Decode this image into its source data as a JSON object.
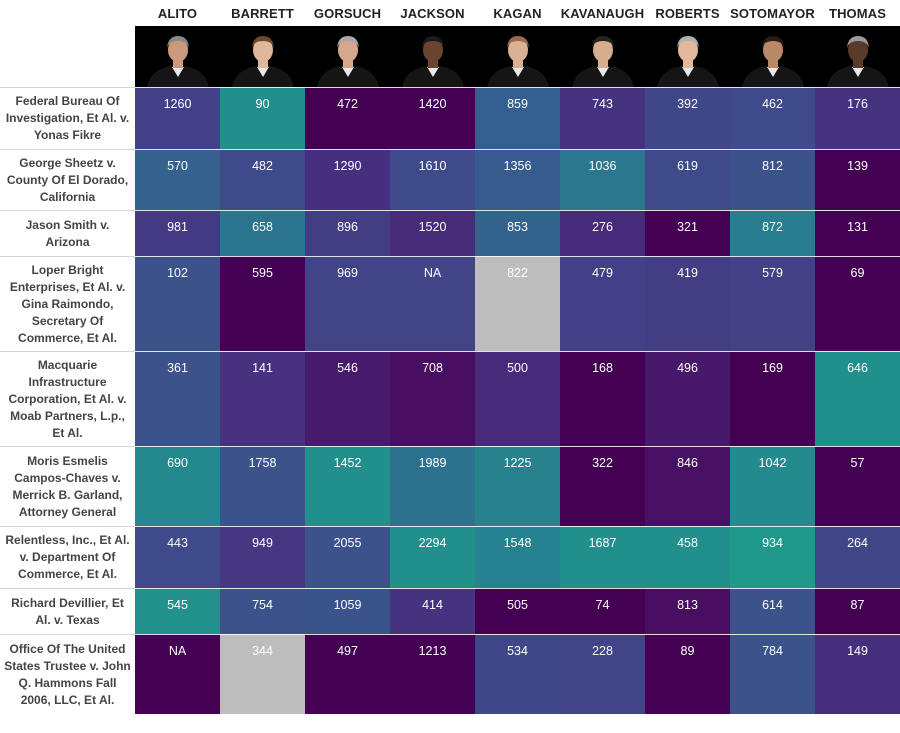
{
  "chart_data": {
    "type": "heatmap",
    "columns": [
      "ALITO",
      "BARRETT",
      "GORSUCH",
      "JACKSON",
      "KAGAN",
      "KAVANAUGH",
      "ROBERTS",
      "SOTOMAYOR",
      "THOMAS"
    ],
    "rows": [
      "Federal Bureau Of Investigation, Et Al. v. Yonas Fikre",
      "George Sheetz v. County Of El Dorado, California",
      "Jason Smith v. Arizona",
      "Loper Bright Enterprises, Et Al. v. Gina Raimondo, Secretary Of Commerce, Et Al.",
      "Macquarie Infrastructure Corporation, Et Al. v. Moab Partners, L.p., Et Al.",
      "Moris Esmelis Campos-Chaves v. Merrick B. Garland, Attorney General",
      "Relentless, Inc., Et Al. v. Department Of Commerce, Et Al.",
      "Richard Devillier, Et Al. v. Texas",
      "Office Of The United States Trustee v. John Q. Hammons Fall 2006, LLC, Et Al."
    ],
    "values": [
      [
        1260,
        90,
        472,
        1420,
        859,
        743,
        392,
        462,
        176
      ],
      [
        570,
        482,
        1290,
        1610,
        1356,
        1036,
        619,
        812,
        139
      ],
      [
        981,
        658,
        896,
        1520,
        853,
        276,
        321,
        872,
        131
      ],
      [
        102,
        595,
        969,
        null,
        822,
        479,
        419,
        579,
        69
      ],
      [
        361,
        141,
        546,
        708,
        500,
        168,
        496,
        169,
        646
      ],
      [
        690,
        1758,
        1452,
        1989,
        1225,
        322,
        846,
        1042,
        57
      ],
      [
        443,
        949,
        2055,
        2294,
        1548,
        1687,
        458,
        934,
        264
      ],
      [
        545,
        754,
        1059,
        414,
        505,
        74,
        813,
        614,
        87
      ],
      [
        null,
        344,
        497,
        1213,
        534,
        228,
        89,
        784,
        149
      ]
    ],
    "display": [
      [
        "1260",
        "90",
        "472",
        "1420",
        "859",
        "743",
        "392",
        "462",
        "176"
      ],
      [
        "570",
        "482",
        "1290",
        "1610",
        "1356",
        "1036",
        "619",
        "812",
        "139"
      ],
      [
        "981",
        "658",
        "896",
        "1520",
        "853",
        "276",
        "321",
        "872",
        "131"
      ],
      [
        "102",
        "595",
        "969",
        "NA",
        "822",
        "479",
        "419",
        "579",
        "69"
      ],
      [
        "361",
        "141",
        "546",
        "708",
        "500",
        "168",
        "496",
        "169",
        "646"
      ],
      [
        "690",
        "1758",
        "1452",
        "1989",
        "1225",
        "322",
        "846",
        "1042",
        "57"
      ],
      [
        "443",
        "949",
        "2055",
        "2294",
        "1548",
        "1687",
        "458",
        "934",
        "264"
      ],
      [
        "545",
        "754",
        "1059",
        "414",
        "505",
        "74",
        "813",
        "614",
        "87"
      ],
      [
        "NA",
        "344",
        "497",
        "1213",
        "534",
        "228",
        "89",
        "784",
        "149"
      ]
    ],
    "cell_colors": [
      [
        "#424187",
        "#238f8c",
        "#440154",
        "#440154",
        "#325f8e",
        "#46337f",
        "#3f4788",
        "#3e4a89",
        "#46337f"
      ],
      [
        "#34618d",
        "#3e4a89",
        "#462f7e",
        "#3e4a89",
        "#365c8d",
        "#2a788e",
        "#3e4a89",
        "#3b528b",
        "#440154"
      ],
      [
        "#443983",
        "#2b758e",
        "#433d84",
        "#472c7a",
        "#33638d",
        "#472a7a",
        "#440154",
        "#287d8e",
        "#440154"
      ],
      [
        "#3b528b",
        "#440154",
        "#414487",
        "#414487",
        "#bdbdbd",
        "#424086",
        "#433d84",
        "#424186",
        "#440154"
      ],
      [
        "#3b528b",
        "#46327e",
        "#481a6c",
        "#470e61",
        "#472a7a",
        "#440154",
        "#48186a",
        "#440154",
        "#21908d"
      ],
      [
        "#23898e",
        "#3b528b",
        "#21908d",
        "#2c728e",
        "#28828e",
        "#440154",
        "#471063",
        "#238a8d",
        "#440154"
      ],
      [
        "#3e4a89",
        "#453781",
        "#3b528b",
        "#21908d",
        "#26828e",
        "#21908d",
        "#21908d",
        "#1f9a8a",
        "#404688"
      ],
      [
        "#22918c",
        "#3b528b",
        "#3a538b",
        "#46337f",
        "#440154",
        "#440154",
        "#470e61",
        "#3b528b",
        "#440154"
      ],
      [
        "#440154",
        "#bdbdbd",
        "#440154",
        "#440154",
        "#3f4788",
        "#414487",
        "#440154",
        "#3b528b",
        "#46307e"
      ]
    ],
    "na_color": "#bdbdbd",
    "grid": false,
    "legend": "none"
  }
}
